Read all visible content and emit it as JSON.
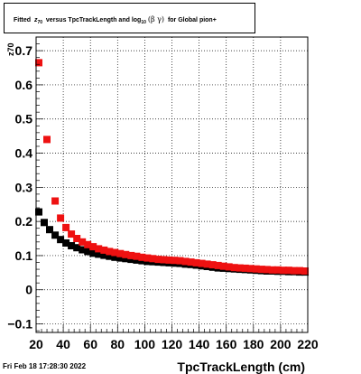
{
  "title": {
    "prefix": "Fitted",
    "z_symbol": "z",
    "z_subscript": "70",
    "versus_text": "versus TpcTrackLength and log",
    "log_subscript": "10",
    "beta_gamma": "(β γ)",
    "suffix": "for Global pion+"
  },
  "footer": {
    "timestamp": "Fri Feb 18 17:28:30 2022"
  },
  "chart_data": {
    "type": "scatter",
    "title": "Fitted z70 versus TpcTrackLength and log10(β γ) for Global pion+",
    "xlabel": "TpcTrackLength (cm)",
    "ylabel": "z70",
    "xlim": [
      20,
      220
    ],
    "ylim": [
      -0.125,
      0.74
    ],
    "x_ticks": [
      "20",
      "40",
      "60",
      "80",
      "100",
      "120",
      "140",
      "160",
      "180",
      "200",
      "220"
    ],
    "y_ticks": [
      "−0.1",
      "0",
      "0.1",
      "0.2",
      "0.3",
      "0.4",
      "0.5",
      "0.6",
      "0.7"
    ],
    "y_tick_values": [
      -0.1,
      0,
      0.1,
      0.2,
      0.3,
      0.4,
      0.5,
      0.6,
      0.7
    ],
    "grid": true,
    "series": [
      {
        "color": "#000000",
        "points": [
          [
            22,
            0.228
          ],
          [
            26,
            0.197
          ],
          [
            30,
            0.176
          ],
          [
            34,
            0.16
          ],
          [
            38,
            0.147
          ],
          [
            42,
            0.137
          ],
          [
            46,
            0.129
          ],
          [
            50,
            0.123
          ],
          [
            54,
            0.117
          ],
          [
            58,
            0.112
          ],
          [
            62,
            0.107
          ],
          [
            66,
            0.104
          ],
          [
            70,
            0.101
          ],
          [
            74,
            0.098
          ],
          [
            78,
            0.095
          ],
          [
            82,
            0.093
          ],
          [
            86,
            0.091
          ],
          [
            90,
            0.089
          ],
          [
            94,
            0.087
          ],
          [
            98,
            0.085
          ],
          [
            102,
            0.083
          ],
          [
            106,
            0.082
          ],
          [
            110,
            0.081
          ],
          [
            114,
            0.08
          ],
          [
            118,
            0.079
          ],
          [
            122,
            0.078
          ],
          [
            126,
            0.077
          ],
          [
            130,
            0.075
          ],
          [
            134,
            0.074
          ],
          [
            138,
            0.072
          ],
          [
            142,
            0.07
          ],
          [
            146,
            0.068
          ],
          [
            150,
            0.066
          ],
          [
            154,
            0.064
          ],
          [
            158,
            0.063
          ],
          [
            162,
            0.062
          ],
          [
            166,
            0.061
          ],
          [
            170,
            0.06
          ],
          [
            174,
            0.059
          ],
          [
            178,
            0.058
          ],
          [
            182,
            0.057
          ],
          [
            186,
            0.056
          ],
          [
            190,
            0.055
          ],
          [
            194,
            0.055
          ],
          [
            198,
            0.054
          ],
          [
            202,
            0.054
          ],
          [
            206,
            0.053
          ],
          [
            210,
            0.053
          ],
          [
            214,
            0.052
          ],
          [
            218,
            0.052
          ]
        ]
      },
      {
        "color": "#ee1111",
        "points": [
          [
            22,
            0.665
          ],
          [
            28,
            0.44
          ],
          [
            34,
            0.26
          ],
          [
            38,
            0.21
          ],
          [
            42,
            0.182
          ],
          [
            46,
            0.163
          ],
          [
            50,
            0.15
          ],
          [
            54,
            0.14
          ],
          [
            58,
            0.132
          ],
          [
            62,
            0.126
          ],
          [
            66,
            0.12
          ],
          [
            70,
            0.116
          ],
          [
            74,
            0.112
          ],
          [
            78,
            0.109
          ],
          [
            82,
            0.106
          ],
          [
            86,
            0.103
          ],
          [
            90,
            0.1
          ],
          [
            94,
            0.098
          ],
          [
            98,
            0.095
          ],
          [
            102,
            0.093
          ],
          [
            106,
            0.091
          ],
          [
            110,
            0.089
          ],
          [
            114,
            0.088
          ],
          [
            118,
            0.087
          ],
          [
            122,
            0.086
          ],
          [
            126,
            0.085
          ],
          [
            130,
            0.083
          ],
          [
            134,
            0.081
          ],
          [
            138,
            0.079
          ],
          [
            142,
            0.077
          ],
          [
            146,
            0.075
          ],
          [
            150,
            0.073
          ],
          [
            154,
            0.071
          ],
          [
            158,
            0.069
          ],
          [
            162,
            0.067
          ],
          [
            166,
            0.065
          ],
          [
            170,
            0.064
          ],
          [
            174,
            0.063
          ],
          [
            178,
            0.062
          ],
          [
            182,
            0.061
          ],
          [
            186,
            0.06
          ],
          [
            190,
            0.059
          ],
          [
            194,
            0.058
          ],
          [
            198,
            0.058
          ],
          [
            202,
            0.057
          ],
          [
            206,
            0.057
          ],
          [
            210,
            0.056
          ],
          [
            214,
            0.056
          ],
          [
            218,
            0.055
          ]
        ]
      }
    ]
  }
}
